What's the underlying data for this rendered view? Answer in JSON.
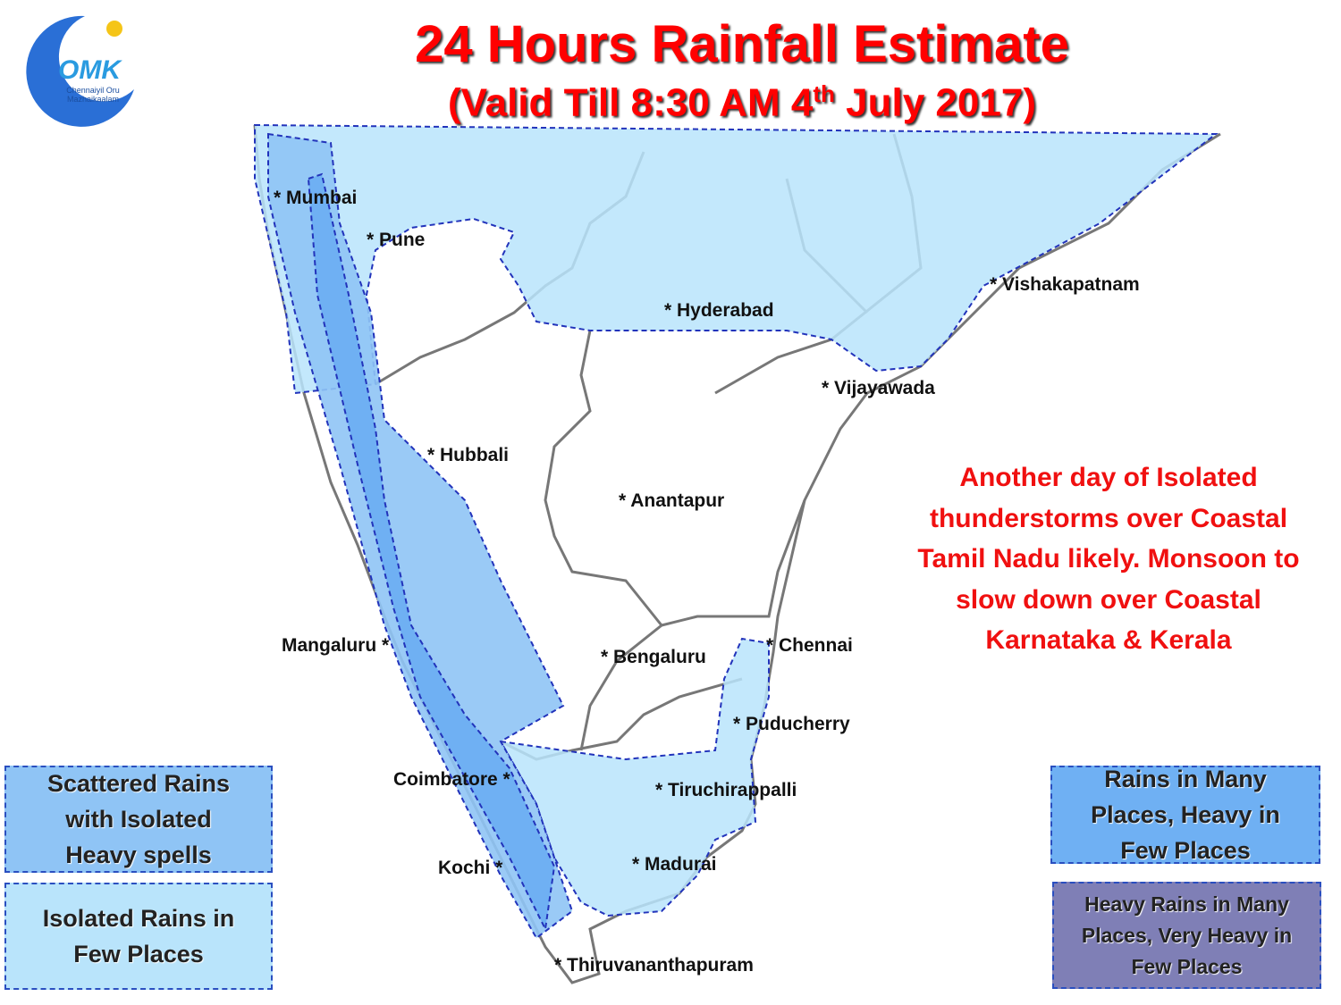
{
  "logo": {
    "mark": "OMK",
    "line1": "Chennaiyil Oru",
    "line2": "Mazhaikaalam"
  },
  "header": {
    "title": "24 Hours Rainfall Estimate",
    "subtitle_pre": "(Valid Till 8:30 AM 4",
    "subtitle_sup": "th",
    "subtitle_post": " July 2017)"
  },
  "cities": [
    "*  Mumbai",
    "*  Pune",
    "*  Hyderabad",
    "*  Vishakapatnam",
    "*  Vijayawada",
    "*  Hubbali",
    "*  Anantapur",
    "Mangaluru *",
    "*  Bengaluru",
    "*  Chennai",
    "*  Puducherry",
    "Coimbatore *",
    "*  Tiruchirappalli",
    "Kochi  *",
    "*  Madurai",
    "*  Thiruvananthapuram"
  ],
  "annotation": [
    "Another day of Isolated",
    "thunderstorms over Coastal",
    "Tamil Nadu likely. Monsoon to",
    "slow down over Coastal",
    "Karnataka & Kerala"
  ],
  "legend": [
    {
      "lines": [
        "Scattered Rains",
        "with Isolated",
        "Heavy spells"
      ]
    },
    {
      "lines": [
        "Isolated Rains in",
        "Few  Places"
      ]
    },
    {
      "lines": [
        "Rains in Many",
        "Places, Heavy in",
        "Few Places"
      ]
    },
    {
      "lines": [
        "Heavy Rains in Many",
        "Places, Very Heavy in",
        "Few Places"
      ]
    }
  ]
}
